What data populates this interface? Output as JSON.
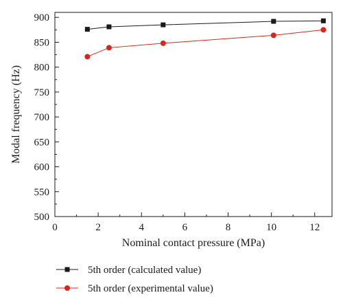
{
  "chart_data": {
    "type": "line",
    "xlabel": "Nominal contact pressure (MPa)",
    "ylabel": "Modal frequency (Hz)",
    "xlim": [
      0,
      12.8
    ],
    "ylim": [
      500,
      910
    ],
    "x_ticks": [
      0,
      2,
      4,
      6,
      8,
      10,
      12
    ],
    "y_ticks": [
      500,
      550,
      600,
      650,
      700,
      750,
      800,
      850,
      900
    ],
    "grid": false,
    "legend_position": "below-plot",
    "series": [
      {
        "name": "5th order (calculated value)",
        "color": "#1a1a1a",
        "marker": "square",
        "x": [
          1.5,
          2.5,
          5.0,
          10.1,
          12.4
        ],
        "y": [
          876,
          881,
          885,
          892,
          893
        ]
      },
      {
        "name": "5th order (experimental value)",
        "color": "#d7261e",
        "marker": "circle",
        "x": [
          1.5,
          2.5,
          5.0,
          10.1,
          12.4
        ],
        "y": [
          821,
          839,
          848,
          864,
          875
        ]
      }
    ]
  }
}
